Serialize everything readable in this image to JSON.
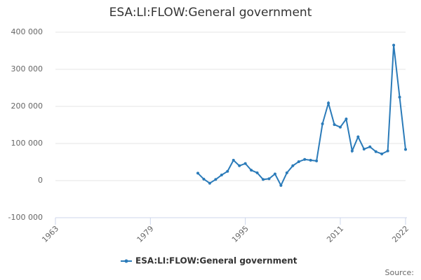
{
  "chart_data": {
    "type": "line",
    "title": "ESA:LI:FLOW:General government",
    "source": "Source:",
    "x": [
      1987,
      1988,
      1989,
      1990,
      1991,
      1992,
      1993,
      1994,
      1995,
      1996,
      1997,
      1998,
      1999,
      2000,
      2001,
      2002,
      2003,
      2004,
      2005,
      2006,
      2007,
      2008,
      2009,
      2010,
      2011,
      2012,
      2013,
      2014,
      2015,
      2016,
      2017,
      2018,
      2019,
      2020,
      2021,
      2022
    ],
    "series": [
      {
        "name": "ESA:LI:FLOW:General government",
        "color": "#2b7bb9",
        "values": [
          20000,
          4000,
          -7000,
          3000,
          15000,
          25000,
          55000,
          40000,
          46000,
          28000,
          21000,
          3000,
          5000,
          18000,
          -13000,
          21000,
          40000,
          51000,
          57000,
          55000,
          53000,
          153000,
          209000,
          151000,
          144000,
          166000,
          80000,
          118000,
          85000,
          91000,
          78000,
          72000,
          80000,
          365000,
          225000,
          84000
        ]
      }
    ],
    "xlim": [
      1963,
      2022
    ],
    "xticks": [
      1963,
      1979,
      1995,
      2011,
      2022
    ],
    "ylim": [
      -100000,
      400000
    ],
    "yticks": [
      {
        "value": -100000,
        "label": "-100 000"
      },
      0,
      {
        "value": 100000,
        "label": "100 000"
      },
      {
        "value": 200000,
        "label": "200 000"
      },
      {
        "value": 300000,
        "label": "300 000"
      },
      {
        "value": 400000,
        "label": "400 000"
      }
    ],
    "grid": true
  }
}
